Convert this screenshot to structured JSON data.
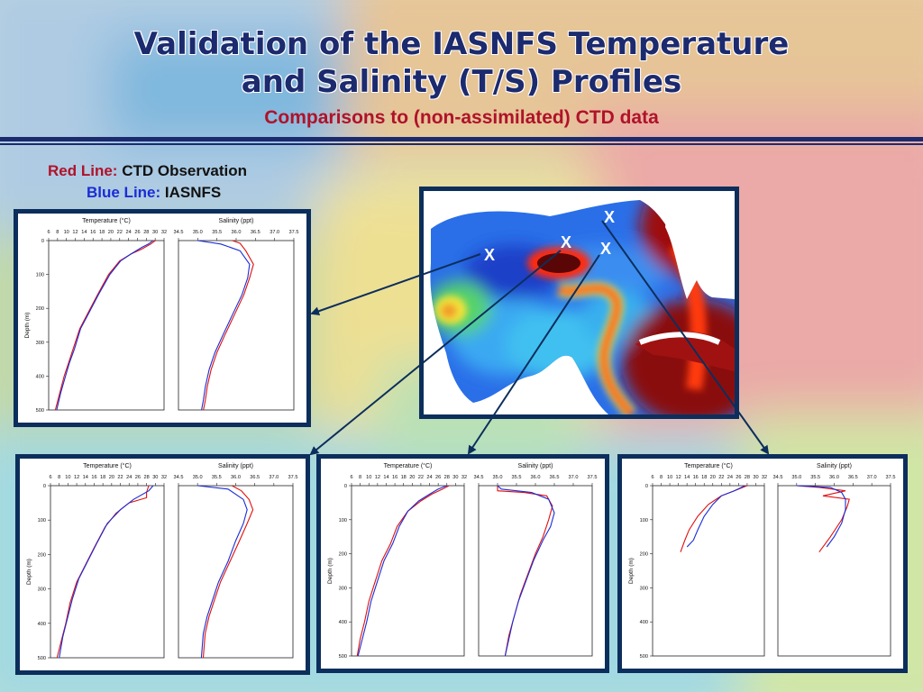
{
  "title_line1": "Validation of the IASNFS Temperature",
  "title_line2": "and Salinity (T/S) Profiles",
  "subtitle": "Comparisons to (non-assimilated) CTD data",
  "legend": {
    "red_key": "Red Line:",
    "red_value": "CTD Observation",
    "blue_key": "Blue Line:",
    "blue_value": "IASNFS"
  },
  "map": {
    "markers": [
      "X",
      "X",
      "X",
      "X"
    ]
  },
  "colors": {
    "title": "#1c2a6e",
    "subtitle": "#b0122a",
    "ctd": "#e01010",
    "iasnfs": "#1a2cd6",
    "frame": "#0c2e5c"
  },
  "chart_data": [
    {
      "type": "line",
      "panel": "left",
      "temperature": {
        "title": "Temperature (°C)",
        "xticks": [
          "6",
          "8",
          "10",
          "12",
          "14",
          "16",
          "18",
          "20",
          "22",
          "24",
          "26",
          "28",
          "30",
          "32"
        ],
        "xlim": [
          6,
          32
        ]
      },
      "salinity": {
        "title": "Salinity (ppt)",
        "xticks": [
          "34.5",
          "35.0",
          "35.5",
          "36.0",
          "36.5",
          "37.0",
          "37.5"
        ],
        "xlim": [
          34.5,
          37.5
        ]
      },
      "ylabel": "Depth (m)",
      "yticks": [
        "0",
        "100",
        "200",
        "300",
        "400",
        "500"
      ],
      "ylim": [
        0,
        500
      ],
      "series": [
        {
          "name": "CTD Observation",
          "var": "temperature",
          "points": [
            [
              30,
              0
            ],
            [
              29,
              10
            ],
            [
              27,
              25
            ],
            [
              24.5,
              40
            ],
            [
              22,
              60
            ],
            [
              19.5,
              100
            ],
            [
              17,
              160
            ],
            [
              15,
              210
            ],
            [
              13,
              260
            ],
            [
              11.5,
              320
            ],
            [
              10.5,
              360
            ],
            [
              9.5,
              400
            ],
            [
              8.5,
              450
            ],
            [
              7.5,
              500
            ]
          ]
        },
        {
          "name": "IASNFS",
          "var": "temperature",
          "points": [
            [
              29.5,
              0
            ],
            [
              28.5,
              10
            ],
            [
              27,
              20
            ],
            [
              24.5,
              40
            ],
            [
              22.2,
              60
            ],
            [
              19.8,
              100
            ],
            [
              17.2,
              160
            ],
            [
              15.2,
              210
            ],
            [
              13.2,
              260
            ],
            [
              11.8,
              320
            ],
            [
              10.7,
              360
            ],
            [
              9.8,
              400
            ],
            [
              8.7,
              450
            ],
            [
              7.8,
              500
            ]
          ]
        },
        {
          "name": "CTD Observation",
          "var": "salinity",
          "points": [
            [
              35.9,
              0
            ],
            [
              36.1,
              8
            ],
            [
              36.25,
              30
            ],
            [
              36.45,
              70
            ],
            [
              36.35,
              110
            ],
            [
              36.2,
              160
            ],
            [
              35.95,
              220
            ],
            [
              35.7,
              280
            ],
            [
              35.5,
              330
            ],
            [
              35.35,
              380
            ],
            [
              35.25,
              430
            ],
            [
              35.2,
              470
            ],
            [
              35.15,
              500
            ]
          ]
        },
        {
          "name": "IASNFS",
          "var": "salinity",
          "points": [
            [
              35.0,
              0
            ],
            [
              35.6,
              10
            ],
            [
              36.1,
              30
            ],
            [
              36.35,
              70
            ],
            [
              36.3,
              110
            ],
            [
              36.15,
              160
            ],
            [
              35.9,
              220
            ],
            [
              35.65,
              280
            ],
            [
              35.45,
              330
            ],
            [
              35.3,
              380
            ],
            [
              35.2,
              430
            ],
            [
              35.15,
              470
            ],
            [
              35.1,
              500
            ]
          ]
        }
      ]
    },
    {
      "type": "line",
      "panel": "bottom-1",
      "temperature": {
        "title": "Temperature (°C)",
        "xticks": [
          "6",
          "8",
          "10",
          "12",
          "14",
          "16",
          "18",
          "20",
          "22",
          "24",
          "26",
          "28",
          "30",
          "32"
        ],
        "xlim": [
          6,
          32
        ]
      },
      "salinity": {
        "title": "Salinity (ppt)",
        "xticks": [
          "34.5",
          "35.0",
          "35.5",
          "36.0",
          "36.5",
          "37.0",
          "37.5"
        ],
        "xlim": [
          34.5,
          37.5
        ]
      },
      "ylabel": "Depth (m)",
      "yticks": [
        "0",
        "100",
        "200",
        "300",
        "400",
        "500"
      ],
      "ylim": [
        0,
        500
      ],
      "series": [
        {
          "name": "CTD Observation",
          "var": "temperature",
          "points": [
            [
              28.5,
              0
            ],
            [
              28,
              20
            ],
            [
              28,
              35
            ],
            [
              24,
              50
            ],
            [
              21,
              80
            ],
            [
              18.5,
              120
            ],
            [
              16,
              180
            ],
            [
              14,
              230
            ],
            [
              12,
              280
            ],
            [
              10.5,
              340
            ],
            [
              9.5,
              400
            ],
            [
              8.5,
              450
            ],
            [
              7.5,
              500
            ]
          ]
        },
        {
          "name": "IASNFS",
          "var": "temperature",
          "points": [
            [
              29.5,
              0
            ],
            [
              28.5,
              15
            ],
            [
              25,
              40
            ],
            [
              22,
              70
            ],
            [
              19,
              110
            ],
            [
              16.5,
              170
            ],
            [
              14.5,
              220
            ],
            [
              12.5,
              270
            ],
            [
              11,
              330
            ],
            [
              9.8,
              390
            ],
            [
              8.8,
              440
            ],
            [
              8,
              500
            ]
          ]
        },
        {
          "name": "CTD Observation",
          "var": "salinity",
          "points": [
            [
              35.9,
              0
            ],
            [
              36.15,
              15
            ],
            [
              36.35,
              40
            ],
            [
              36.45,
              70
            ],
            [
              36.3,
              110
            ],
            [
              36.1,
              160
            ],
            [
              35.85,
              220
            ],
            [
              35.6,
              280
            ],
            [
              35.45,
              330
            ],
            [
              35.3,
              380
            ],
            [
              35.2,
              430
            ],
            [
              35.15,
              500
            ]
          ]
        },
        {
          "name": "IASNFS",
          "var": "salinity",
          "points": [
            [
              35.0,
              0
            ],
            [
              35.8,
              10
            ],
            [
              36.2,
              40
            ],
            [
              36.3,
              70
            ],
            [
              36.2,
              110
            ],
            [
              36.0,
              160
            ],
            [
              35.8,
              220
            ],
            [
              35.55,
              280
            ],
            [
              35.4,
              330
            ],
            [
              35.25,
              380
            ],
            [
              35.15,
              430
            ],
            [
              35.1,
              500
            ]
          ]
        }
      ]
    },
    {
      "type": "line",
      "panel": "bottom-2",
      "temperature": {
        "title": "Temperature (°C)",
        "xticks": [
          "6",
          "8",
          "10",
          "12",
          "14",
          "16",
          "18",
          "20",
          "22",
          "24",
          "26",
          "28",
          "30",
          "32"
        ],
        "xlim": [
          6,
          32
        ]
      },
      "salinity": {
        "title": "Salinity (ppt)",
        "xticks": [
          "34.5",
          "35.0",
          "35.5",
          "36.0",
          "36.5",
          "37.0",
          "37.5"
        ],
        "xlim": [
          34.5,
          37.5
        ]
      },
      "ylabel": "Depth (m)",
      "yticks": [
        "0",
        "100",
        "200",
        "300",
        "400",
        "500"
      ],
      "ylim": [
        0,
        500
      ],
      "series": [
        {
          "name": "CTD Observation",
          "var": "temperature",
          "points": [
            [
              28.5,
              0
            ],
            [
              27,
              10
            ],
            [
              24.5,
              25
            ],
            [
              22,
              45
            ],
            [
              19,
              75
            ],
            [
              16.5,
              120
            ],
            [
              15,
              170
            ],
            [
              13,
              220
            ],
            [
              11.5,
              280
            ],
            [
              10,
              340
            ],
            [
              9,
              400
            ],
            [
              8,
              450
            ],
            [
              7.3,
              500
            ]
          ]
        },
        {
          "name": "IASNFS",
          "var": "temperature",
          "points": [
            [
              28,
              0
            ],
            [
              26,
              10
            ],
            [
              24,
              25
            ],
            [
              21.5,
              45
            ],
            [
              19,
              75
            ],
            [
              17,
              120
            ],
            [
              15.5,
              170
            ],
            [
              13.5,
              220
            ],
            [
              12,
              280
            ],
            [
              10.5,
              340
            ],
            [
              9.5,
              400
            ],
            [
              8.5,
              450
            ],
            [
              7.5,
              500
            ]
          ]
        },
        {
          "name": "CTD Observation",
          "var": "salinity",
          "points": [
            [
              35.0,
              0
            ],
            [
              35.0,
              15
            ],
            [
              35.7,
              20
            ],
            [
              36.3,
              30
            ],
            [
              36.45,
              60
            ],
            [
              36.35,
              100
            ],
            [
              36.2,
              150
            ],
            [
              36.0,
              200
            ],
            [
              35.8,
              260
            ],
            [
              35.6,
              320
            ],
            [
              35.45,
              380
            ],
            [
              35.3,
              440
            ],
            [
              35.2,
              500
            ]
          ]
        },
        {
          "name": "IASNFS",
          "var": "salinity",
          "points": [
            [
              35.0,
              0
            ],
            [
              35.1,
              10
            ],
            [
              35.9,
              20
            ],
            [
              36.35,
              40
            ],
            [
              36.5,
              80
            ],
            [
              36.4,
              120
            ],
            [
              36.2,
              160
            ],
            [
              35.95,
              220
            ],
            [
              35.75,
              280
            ],
            [
              35.55,
              340
            ],
            [
              35.4,
              400
            ],
            [
              35.3,
              450
            ],
            [
              35.2,
              500
            ]
          ]
        }
      ]
    },
    {
      "type": "line",
      "panel": "bottom-3",
      "temperature": {
        "title": "Temperature (°C)",
        "xticks": [
          "6",
          "8",
          "10",
          "12",
          "14",
          "16",
          "18",
          "20",
          "22",
          "24",
          "26",
          "28",
          "30",
          "32"
        ],
        "xlim": [
          6,
          32
        ]
      },
      "salinity": {
        "title": "Salinity (ppt)",
        "xticks": [
          "34.5",
          "35.0",
          "35.5",
          "36.0",
          "36.5",
          "37.0",
          "37.5"
        ],
        "xlim": [
          34.5,
          37.5
        ]
      },
      "ylabel": "Depth (m)",
      "yticks": [
        "0",
        "100",
        "200",
        "300",
        "400",
        "500"
      ],
      "ylim": [
        0,
        500
      ],
      "series": [
        {
          "name": "CTD Observation",
          "var": "temperature",
          "points": [
            [
              28,
              0
            ],
            [
              25,
              15
            ],
            [
              22,
              30
            ],
            [
              19,
              55
            ],
            [
              16.5,
              90
            ],
            [
              14.5,
              130
            ],
            [
              13.5,
              160
            ],
            [
              12.5,
              195
            ]
          ]
        },
        {
          "name": "IASNFS",
          "var": "temperature",
          "points": [
            [
              27.5,
              0
            ],
            [
              25,
              15
            ],
            [
              22,
              30
            ],
            [
              20,
              55
            ],
            [
              18,
              90
            ],
            [
              16.5,
              130
            ],
            [
              15.5,
              160
            ],
            [
              14,
              180
            ]
          ]
        },
        {
          "name": "CTD Observation",
          "var": "salinity",
          "points": [
            [
              35.0,
              0
            ],
            [
              35.6,
              5
            ],
            [
              36.3,
              15
            ],
            [
              35.7,
              30
            ],
            [
              36.4,
              40
            ],
            [
              36.35,
              60
            ],
            [
              36.2,
              100
            ],
            [
              35.9,
              150
            ],
            [
              35.6,
              195
            ]
          ]
        },
        {
          "name": "IASNFS",
          "var": "salinity",
          "points": [
            [
              35.0,
              0
            ],
            [
              35.9,
              5
            ],
            [
              36.2,
              20
            ],
            [
              36.3,
              40
            ],
            [
              36.3,
              70
            ],
            [
              36.2,
              110
            ],
            [
              36.0,
              150
            ],
            [
              35.8,
              180
            ]
          ]
        }
      ]
    }
  ]
}
